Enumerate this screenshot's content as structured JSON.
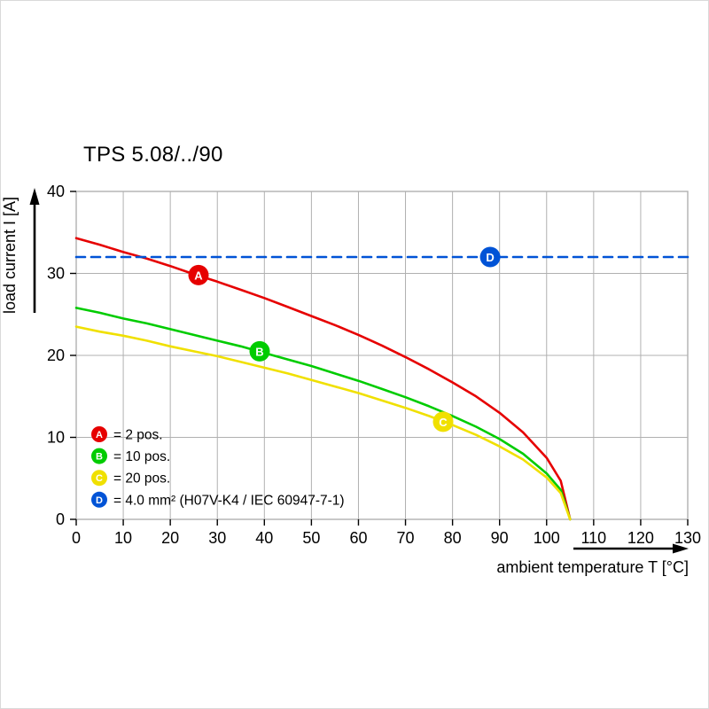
{
  "page": {
    "title": "TPS 5.08/../90"
  },
  "chart_data": {
    "type": "line",
    "title": "TPS 5.08/../90",
    "xlabel": "ambient temperature T [°C]",
    "ylabel": "load current I [A]",
    "xlim": [
      0,
      130
    ],
    "ylim": [
      0,
      40
    ],
    "x_ticks": [
      0,
      10,
      20,
      30,
      40,
      50,
      60,
      70,
      80,
      90,
      100,
      110,
      120,
      130
    ],
    "y_ticks": [
      0,
      10,
      20,
      30,
      40
    ],
    "grid": true,
    "legend_position": "bottom-left-inside",
    "colors": {
      "grid": "#b0b0b0",
      "axis": "#000000",
      "background": "#ffffff"
    },
    "series": [
      {
        "id": "A",
        "label": "2 pos.",
        "color": "#e60000",
        "line_style": "solid",
        "points": [
          [
            0,
            34.3
          ],
          [
            5,
            33.5
          ],
          [
            10,
            32.6
          ],
          [
            15,
            31.8
          ],
          [
            20,
            30.9
          ],
          [
            25,
            29.9
          ],
          [
            30,
            29.0
          ],
          [
            35,
            28.0
          ],
          [
            40,
            27.0
          ],
          [
            45,
            25.9
          ],
          [
            50,
            24.8
          ],
          [
            55,
            23.7
          ],
          [
            60,
            22.5
          ],
          [
            65,
            21.2
          ],
          [
            70,
            19.8
          ],
          [
            75,
            18.3
          ],
          [
            80,
            16.7
          ],
          [
            85,
            15.0
          ],
          [
            90,
            13.0
          ],
          [
            95,
            10.6
          ],
          [
            100,
            7.5
          ],
          [
            103,
            4.7
          ],
          [
            105,
            0
          ]
        ]
      },
      {
        "id": "B",
        "label": "10 pos.",
        "color": "#00cc00",
        "line_style": "solid",
        "points": [
          [
            0,
            25.8
          ],
          [
            5,
            25.2
          ],
          [
            10,
            24.5
          ],
          [
            15,
            23.9
          ],
          [
            20,
            23.2
          ],
          [
            25,
            22.5
          ],
          [
            30,
            21.8
          ],
          [
            35,
            21.1
          ],
          [
            40,
            20.3
          ],
          [
            45,
            19.5
          ],
          [
            50,
            18.7
          ],
          [
            55,
            17.8
          ],
          [
            60,
            16.9
          ],
          [
            65,
            15.9
          ],
          [
            70,
            14.9
          ],
          [
            75,
            13.8
          ],
          [
            80,
            12.6
          ],
          [
            85,
            11.3
          ],
          [
            90,
            9.8
          ],
          [
            95,
            8.0
          ],
          [
            100,
            5.6
          ],
          [
            103,
            3.6
          ],
          [
            105,
            0
          ]
        ]
      },
      {
        "id": "C",
        "label": "20 pos.",
        "color": "#f0e000",
        "line_style": "solid",
        "points": [
          [
            0,
            23.5
          ],
          [
            5,
            22.9
          ],
          [
            10,
            22.4
          ],
          [
            15,
            21.8
          ],
          [
            20,
            21.1
          ],
          [
            25,
            20.5
          ],
          [
            30,
            19.9
          ],
          [
            35,
            19.2
          ],
          [
            40,
            18.5
          ],
          [
            45,
            17.8
          ],
          [
            50,
            17.0
          ],
          [
            55,
            16.2
          ],
          [
            60,
            15.4
          ],
          [
            65,
            14.5
          ],
          [
            70,
            13.6
          ],
          [
            75,
            12.6
          ],
          [
            80,
            11.5
          ],
          [
            85,
            10.3
          ],
          [
            90,
            8.9
          ],
          [
            95,
            7.3
          ],
          [
            100,
            5.1
          ],
          [
            103,
            3.2
          ],
          [
            105,
            0
          ]
        ]
      },
      {
        "id": "D",
        "label": "4.0 mm² (H07V-K4 / IEC 60947-7-1)",
        "color": "#0053d6",
        "line_style": "dashed",
        "points": [
          [
            0,
            32
          ],
          [
            130,
            32
          ]
        ]
      }
    ],
    "markers": [
      {
        "series": "A",
        "letter": "A",
        "x": 26,
        "y": 29.8
      },
      {
        "series": "B",
        "letter": "B",
        "x": 39,
        "y": 20.5
      },
      {
        "series": "C",
        "letter": "C",
        "x": 78,
        "y": 11.9
      },
      {
        "series": "D",
        "letter": "D",
        "x": 88,
        "y": 32
      }
    ],
    "legend": {
      "items": [
        {
          "letter": "A",
          "color": "#e60000",
          "text": "= 2 pos."
        },
        {
          "letter": "B",
          "color": "#00cc00",
          "text": "= 10 pos."
        },
        {
          "letter": "C",
          "color": "#f0e000",
          "text": "= 20 pos."
        },
        {
          "letter": "D",
          "color": "#0053d6",
          "text": "= 4.0 mm² (H07V-K4 / IEC 60947-7-1)"
        }
      ]
    }
  }
}
